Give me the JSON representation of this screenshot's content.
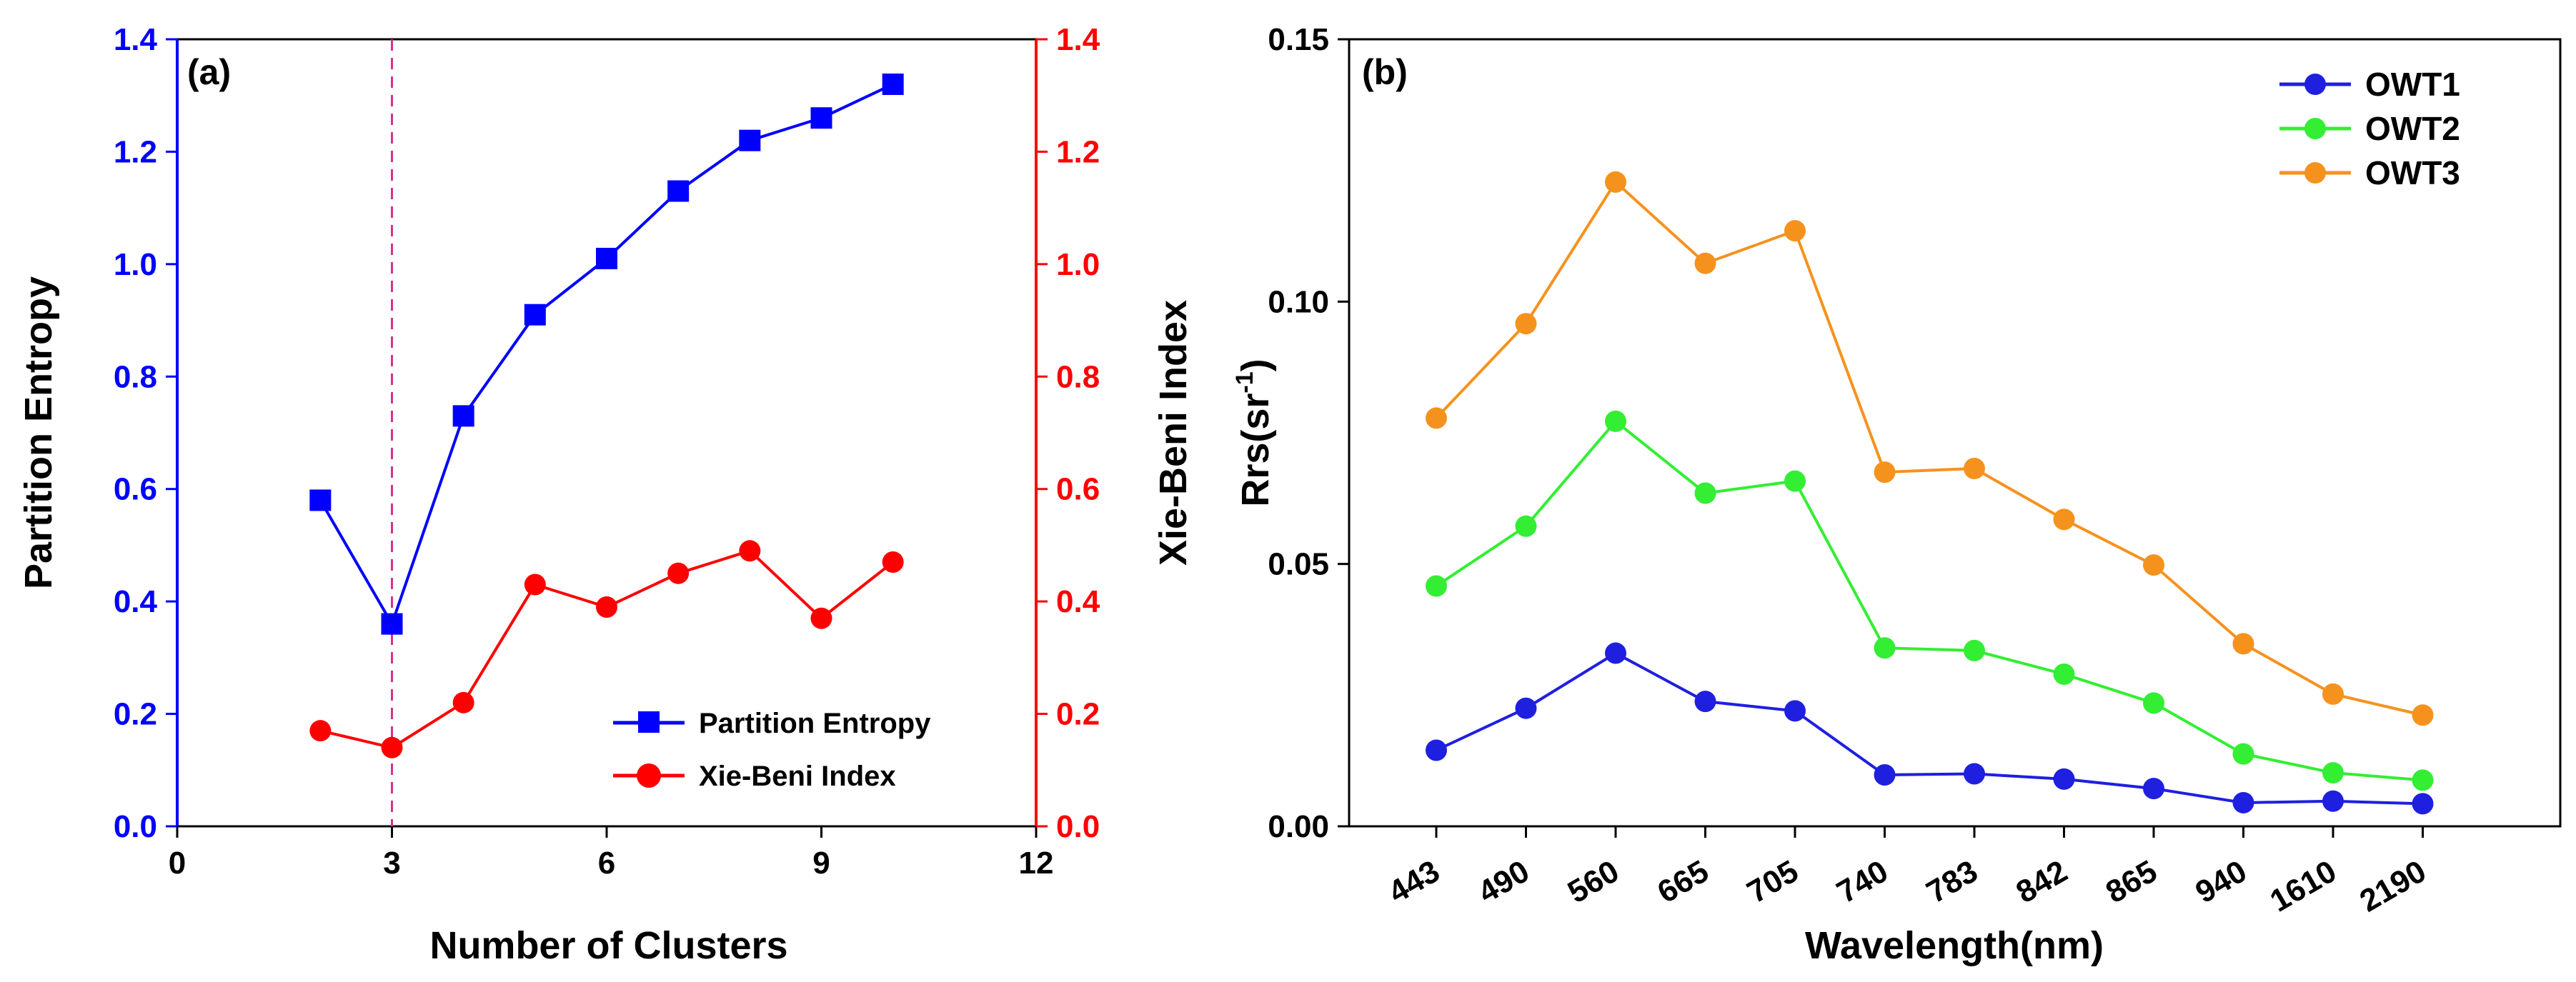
{
  "chart_data": [
    {
      "type": "line",
      "panel_label": "(a)",
      "xlabel": "Number of Clusters",
      "ylabel_left": "Partition Entropy",
      "ylabel_right": "Xie-Beni Index",
      "xlim": [
        0,
        12
      ],
      "ylim_left": [
        0.0,
        1.4
      ],
      "ylim_right": [
        0.0,
        1.4
      ],
      "xticks": [
        "0",
        "3",
        "6",
        "9",
        "12"
      ],
      "yticks_left": [
        "0.0",
        "0.2",
        "0.4",
        "0.6",
        "0.8",
        "1.0",
        "1.2",
        "1.4"
      ],
      "yticks_right": [
        "0.0",
        "0.2",
        "0.4",
        "0.6",
        "0.8",
        "1.0",
        "1.2",
        "1.4"
      ],
      "vline_x": 3,
      "grid": false,
      "legend_position": "bottom-right",
      "x": [
        2,
        3,
        4,
        5,
        6,
        7,
        8,
        9,
        10
      ],
      "series": [
        {
          "name": "Partition Entropy",
          "axis": "left",
          "marker": "square",
          "color": "#0000ff",
          "values": [
            0.58,
            0.36,
            0.73,
            0.91,
            1.01,
            1.13,
            1.22,
            1.26,
            1.32
          ]
        },
        {
          "name": "Xie-Beni Index",
          "axis": "right",
          "marker": "circle",
          "color": "#ff0000",
          "values": [
            0.17,
            0.14,
            0.22,
            0.43,
            0.39,
            0.45,
            0.49,
            0.37,
            0.47
          ]
        }
      ],
      "vline_color": "#d6338c"
    },
    {
      "type": "line",
      "panel_label": "(b)",
      "xlabel": "Wavelength(nm)",
      "ylabel": "Rrs(sr",
      "ylabel_exponent": "-1",
      "ylabel_close": ")",
      "ylim": [
        0.0,
        0.15
      ],
      "yticks": [
        "0.00",
        "0.05",
        "0.10",
        "0.15"
      ],
      "categories": [
        "443",
        "490",
        "560",
        "665",
        "705",
        "740",
        "783",
        "842",
        "865",
        "940",
        "1610",
        "2190"
      ],
      "grid": false,
      "legend_position": "top-right",
      "series": [
        {
          "name": "OWT1",
          "color": "#1f1fe0",
          "values": [
            0.0145,
            0.0225,
            0.033,
            0.0238,
            0.022,
            0.0098,
            0.01,
            0.009,
            0.0072,
            0.0045,
            0.0048,
            0.0043
          ]
        },
        {
          "name": "OWT2",
          "color": "#33ee33",
          "values": [
            0.0458,
            0.0572,
            0.0772,
            0.0635,
            0.0658,
            0.034,
            0.0335,
            0.029,
            0.0235,
            0.0138,
            0.0102,
            0.0088
          ]
        },
        {
          "name": "OWT3",
          "color": "#f5921e",
          "values": [
            0.0778,
            0.0958,
            0.1228,
            0.1073,
            0.1135,
            0.0675,
            0.0682,
            0.0585,
            0.0498,
            0.0348,
            0.0252,
            0.0212
          ]
        }
      ]
    }
  ]
}
